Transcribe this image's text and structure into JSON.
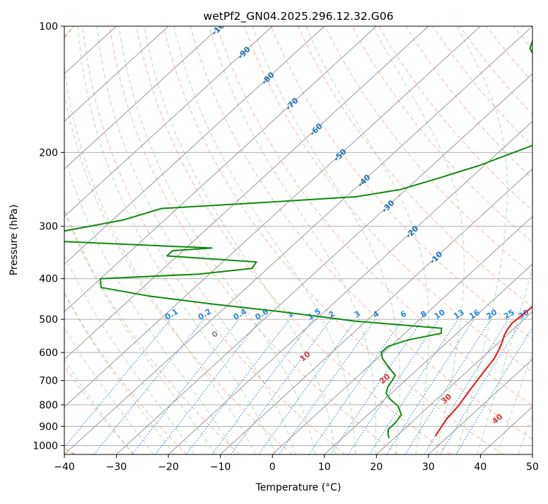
{
  "chart_data": {
    "type": "skew-t",
    "title": "wetPf2_GN04.2025.296.12.32.G06",
    "xlabel": "Temperature (°C)",
    "ylabel": "Pressure (hPa)",
    "xlim": [
      -40,
      50
    ],
    "ylim": [
      1050,
      100
    ],
    "x_ticks": [
      "−40",
      "−30",
      "−20",
      "−10",
      "0",
      "10",
      "20",
      "30",
      "40",
      "50"
    ],
    "x_tick_values": [
      -40,
      -30,
      -20,
      -10,
      0,
      10,
      20,
      30,
      40,
      50
    ],
    "y_ticks": [
      100,
      200,
      300,
      400,
      500,
      600,
      700,
      800,
      900,
      1000
    ],
    "y_tick_labels": [
      "100",
      "200",
      "300",
      "400",
      "500",
      "600",
      "700",
      "800",
      "900",
      "1000"
    ],
    "isotherm_labels": [
      "-100",
      "-90",
      "-80",
      "-70",
      "-60",
      "-50",
      "-40",
      "-30",
      "-20",
      "-10"
    ],
    "isotherm_label_values": [
      -100,
      -90,
      -80,
      -70,
      -60,
      -50,
      -40,
      -30,
      -20,
      -10
    ],
    "mixing_ratio_labels": [
      "0.1",
      "0.2",
      "0.4",
      "0.6",
      "1",
      "1.5",
      "2",
      "3",
      "4",
      "6",
      "8",
      "10",
      "13",
      "16",
      "20",
      "25",
      "30",
      "36"
    ],
    "mixing_ratio_values": [
      0.1,
      0.2,
      0.4,
      0.6,
      1,
      1.5,
      2,
      3,
      4,
      6,
      8,
      10,
      13,
      16,
      20,
      25,
      30,
      36
    ],
    "moist_adiabat_labels": [
      "0",
      "10",
      "20",
      "30",
      "40"
    ],
    "moist_adiabat_values": [
      0,
      10,
      20,
      30,
      40
    ],
    "series": [
      {
        "name": "Temperature",
        "color": "#ee1111",
        "points": [
          [
            27.5,
            950
          ],
          [
            27.0,
            920
          ],
          [
            26.5,
            890
          ],
          [
            26.0,
            860
          ],
          [
            25.8,
            830
          ],
          [
            25.5,
            800
          ],
          [
            25.0,
            770
          ],
          [
            24.5,
            740
          ],
          [
            24.0,
            710
          ],
          [
            23.5,
            680
          ],
          [
            23.0,
            650
          ],
          [
            22.5,
            620
          ],
          [
            21.5,
            590
          ],
          [
            20.5,
            565
          ],
          [
            19.5,
            545
          ],
          [
            18.8,
            525
          ],
          [
            18.5,
            510
          ],
          [
            18.7,
            495
          ],
          [
            18.8,
            480
          ],
          [
            19.0,
            465
          ],
          [
            18.6,
            450
          ],
          [
            18.0,
            440
          ],
          [
            17.6,
            430
          ],
          [
            16.8,
            415
          ],
          [
            15.9,
            400
          ],
          [
            14.4,
            385
          ],
          [
            13.2,
            370
          ],
          [
            12.5,
            355
          ],
          [
            11.3,
            340
          ],
          [
            10.2,
            325
          ],
          [
            8.8,
            310
          ],
          [
            7.1,
            295
          ],
          [
            5.5,
            280
          ],
          [
            4.0,
            266
          ],
          [
            2.4,
            252
          ],
          [
            0.2,
            235
          ],
          [
            -2.6,
            215
          ],
          [
            -4.8,
            200
          ],
          [
            -6.7,
            187
          ],
          [
            -8.3,
            176
          ],
          [
            -10.0,
            165
          ],
          [
            -11.8,
            154
          ],
          [
            -13.6,
            144
          ],
          [
            -15.5,
            134
          ],
          [
            -17.2,
            125
          ],
          [
            -19.1,
            117
          ],
          [
            -20.8,
            110
          ],
          [
            -21.5,
            105
          ],
          [
            -21.7,
            100
          ]
        ]
      },
      {
        "name": "Dewpoint",
        "color": "#118811",
        "points": [
          [
            19.0,
            960
          ],
          [
            18.0,
            940
          ],
          [
            17.0,
            915
          ],
          [
            17.0,
            885
          ],
          [
            16.5,
            845
          ],
          [
            14.0,
            805
          ],
          [
            11.0,
            775
          ],
          [
            9.0,
            750
          ],
          [
            8.0,
            725
          ],
          [
            7.5,
            700
          ],
          [
            7.0,
            680
          ],
          [
            5.0,
            660
          ],
          [
            3.0,
            640
          ],
          [
            1.0,
            620
          ],
          [
            -0.5,
            600
          ],
          [
            -0.5,
            580
          ],
          [
            2.0,
            560
          ],
          [
            7.0,
            540
          ],
          [
            6.0,
            525
          ],
          [
            -12.0,
            505
          ],
          [
            -28.0,
            480
          ],
          [
            -43.0,
            460
          ],
          [
            -57.0,
            440
          ],
          [
            -68.0,
            420
          ],
          [
            -70.0,
            400
          ],
          [
            -52.0,
            390
          ],
          [
            -43.0,
            378
          ],
          [
            -43.5,
            365
          ],
          [
            -62.0,
            353
          ],
          [
            -62.0,
            343
          ],
          [
            -55.0,
            338
          ],
          [
            -88.0,
            325
          ],
          [
            -88.0,
            310
          ],
          [
            -78.0,
            290
          ],
          [
            -73.0,
            272
          ],
          [
            -52.0,
            262
          ],
          [
            -38.0,
            255
          ],
          [
            -31.0,
            245
          ],
          [
            -26.0,
            230
          ],
          [
            -21.0,
            215
          ],
          [
            -16.5,
            198
          ],
          [
            -13.0,
            186
          ],
          [
            -14.5,
            178
          ],
          [
            -17.5,
            168
          ],
          [
            -20.5,
            155
          ],
          [
            -23.5,
            145
          ],
          [
            -26.5,
            136
          ],
          [
            -29.5,
            127
          ],
          [
            -32.0,
            122
          ],
          [
            -33.8,
            117
          ],
          [
            -35.8,
            113
          ],
          [
            -37.0,
            108
          ],
          [
            -38.3,
            103
          ],
          [
            -39.3,
            100
          ]
        ]
      }
    ],
    "grid": true
  }
}
